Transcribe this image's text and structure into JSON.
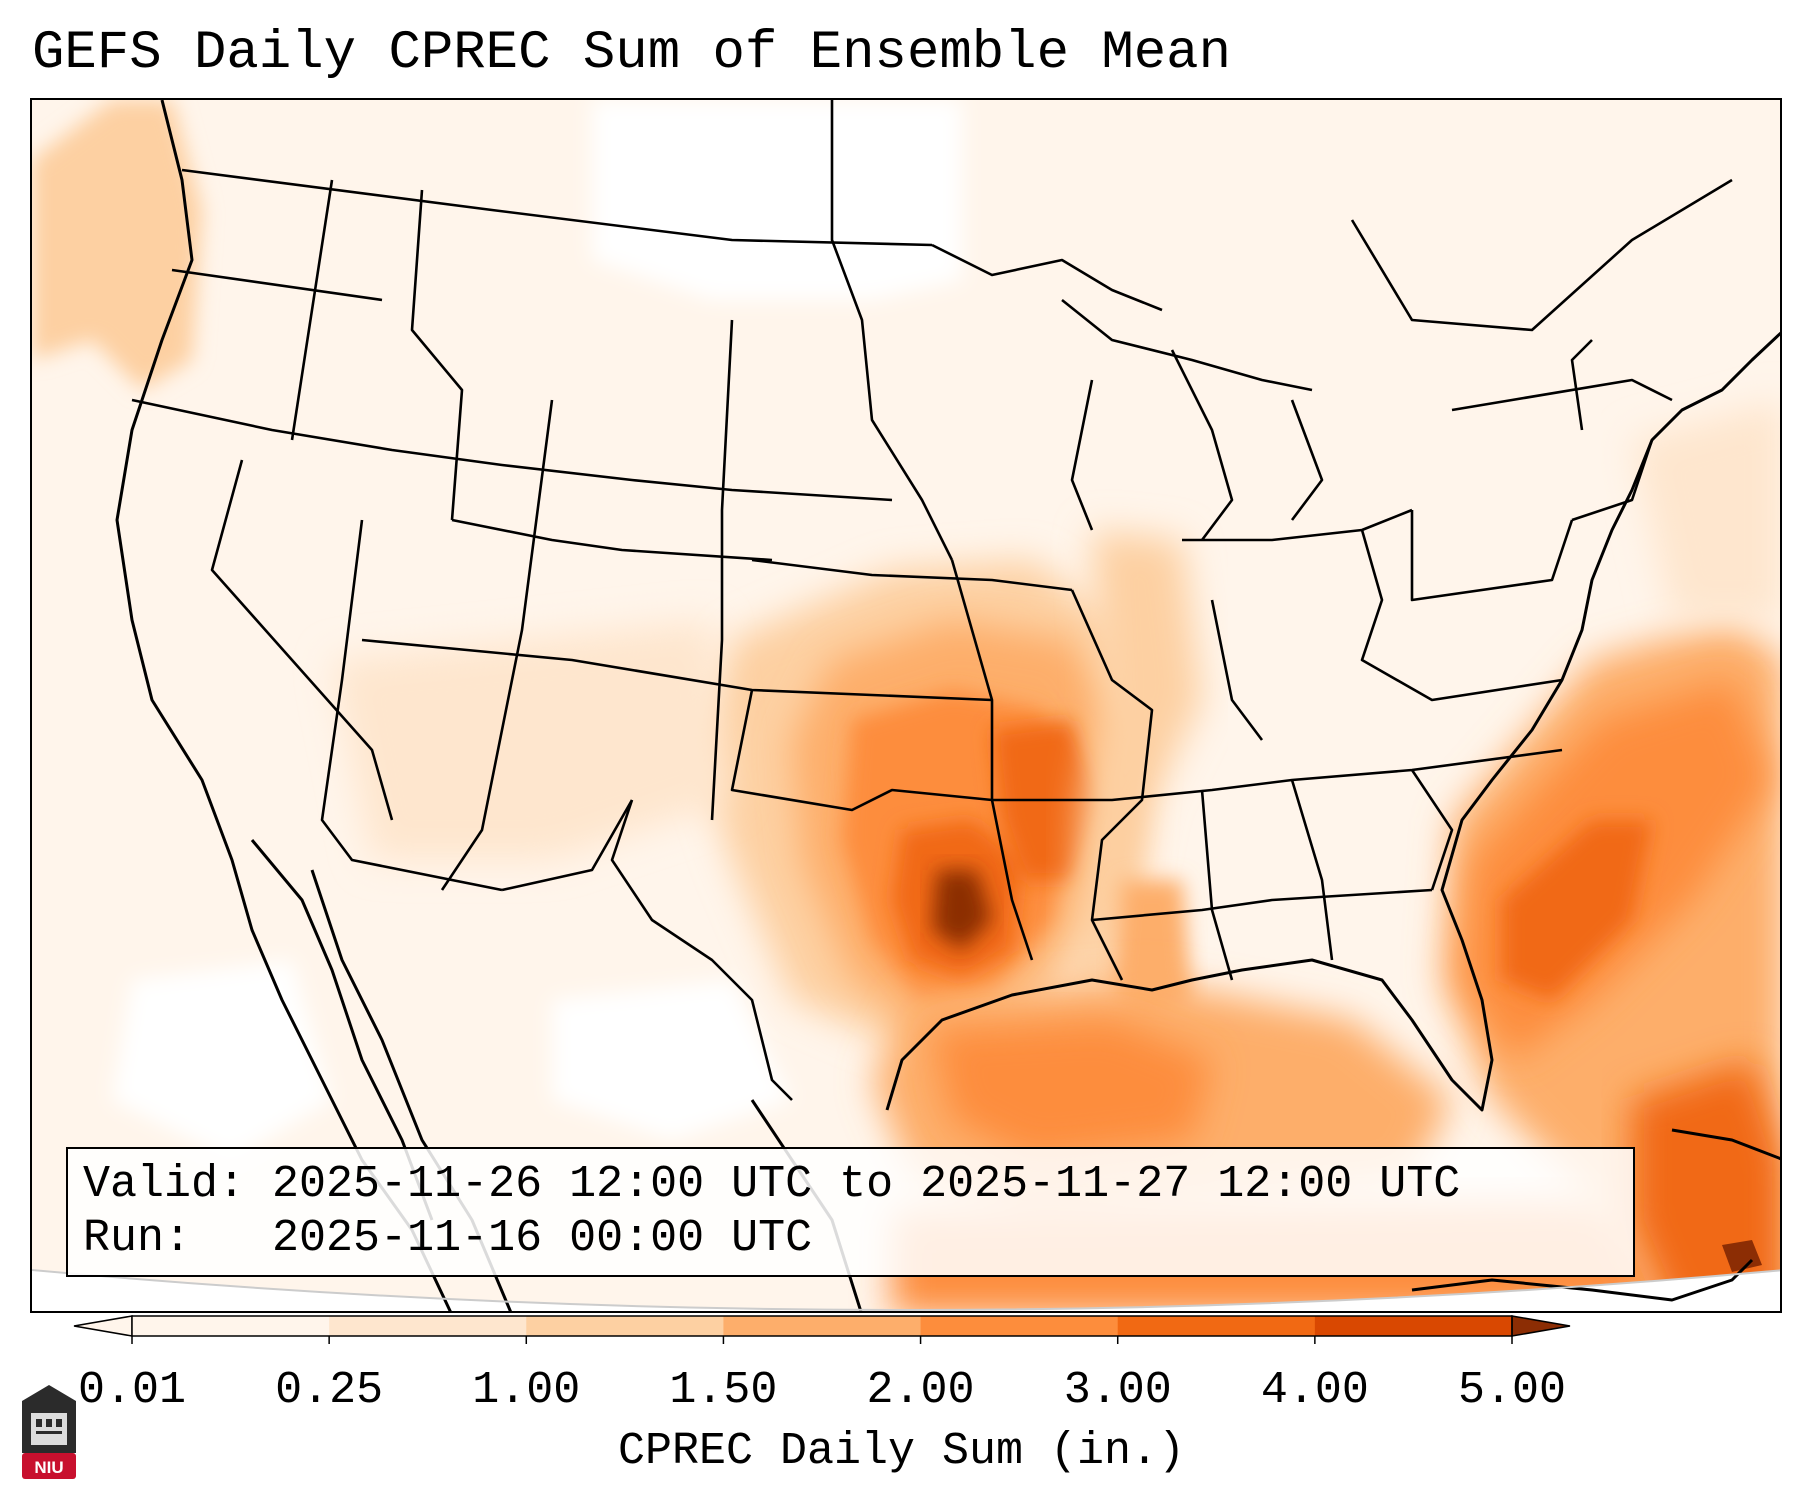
{
  "title": "GEFS Daily CPREC Sum of Ensemble Mean",
  "info": {
    "valid_label": "Valid:",
    "valid_value": "2025-11-26 12:00 UTC to 2025-11-27 12:00 UTC",
    "run_label": "Run:",
    "run_value": "2025-11-16 00:00 UTC"
  },
  "colorbar": {
    "label": "CPREC Daily Sum (in.)",
    "ticks": [
      "0.01",
      "0.25",
      "1.00",
      "1.50",
      "2.00",
      "3.00",
      "4.00",
      "5.00"
    ],
    "colors": [
      "#fff5eb",
      "#fee6ce",
      "#fdd0a2",
      "#fdae6b",
      "#fd8d3c",
      "#f16913",
      "#d94801",
      "#8c2d04"
    ],
    "extend": "both"
  },
  "logo": {
    "text": "NIU",
    "color": "#c8102e"
  },
  "map": {
    "domain": "CONUS",
    "background_color": "#ffffff",
    "boundary_color": "#000000",
    "precip_features": [
      {
        "name": "Pacific Northwest offshore band",
        "level": "0.25-1.00"
      },
      {
        "name": "Southern Plains max (Oklahoma/Texas/Arkansas)",
        "level": "3.00-4.00",
        "peak": "4.00-5.00"
      },
      {
        "name": "Western Gulf of Mexico",
        "level": "1.50-2.00"
      },
      {
        "name": "Southeast coast / Western Atlantic",
        "level": "1.50-3.00"
      },
      {
        "name": "Bahamas / Cuba",
        "level": "2.00-4.00"
      }
    ]
  }
}
